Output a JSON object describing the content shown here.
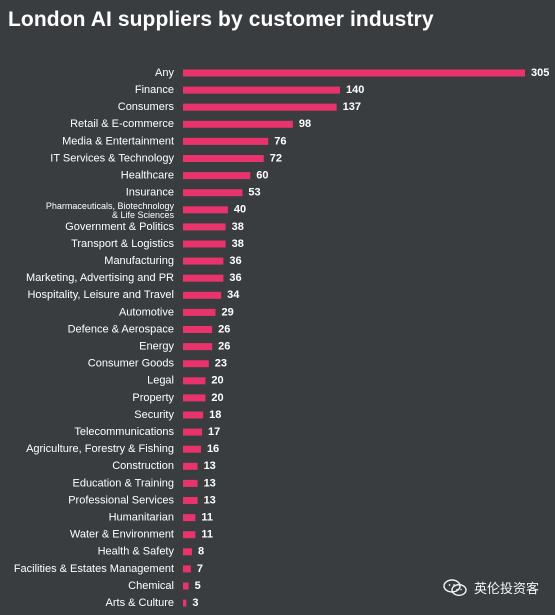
{
  "chart_data": {
    "type": "bar",
    "orientation": "horizontal",
    "title": "London AI suppliers by customer industry",
    "categories": [
      "Any",
      "Finance",
      "Consumers",
      "Retail & E-commerce",
      "Media & Entertainment",
      "IT Services & Technology",
      "Healthcare",
      "Insurance",
      "Pharmaceuticals, Biotechnology & Life Sciences",
      "Government & Politics",
      "Transport & Logistics",
      "Manufacturing",
      "Marketing, Advertising and PR",
      "Hospitality, Leisure and Travel",
      "Automotive",
      "Defence & Aerospace",
      "Energy",
      "Consumer Goods",
      "Legal",
      "Property",
      "Security",
      "Telecommunications",
      "Agriculture, Forestry & Fishing",
      "Construction",
      "Education & Training",
      "Professional Services",
      "Humanitarian",
      "Water & Environment",
      "Health & Safety",
      "Facilities & Estates Management",
      "Chemical",
      "Arts & Culture"
    ],
    "values": [
      305,
      140,
      137,
      98,
      76,
      72,
      60,
      53,
      40,
      38,
      38,
      36,
      36,
      34,
      29,
      26,
      26,
      23,
      20,
      20,
      18,
      17,
      16,
      13,
      13,
      13,
      11,
      11,
      8,
      7,
      5,
      3
    ],
    "xlim": [
      0,
      305
    ],
    "grid": false,
    "legend": "none",
    "colors": {
      "background": "#3a3d40",
      "bar": "#e8336d",
      "text": "#ffffff"
    }
  },
  "watermark": {
    "icon": "wechat-icon",
    "text": "英伦投资客"
  }
}
